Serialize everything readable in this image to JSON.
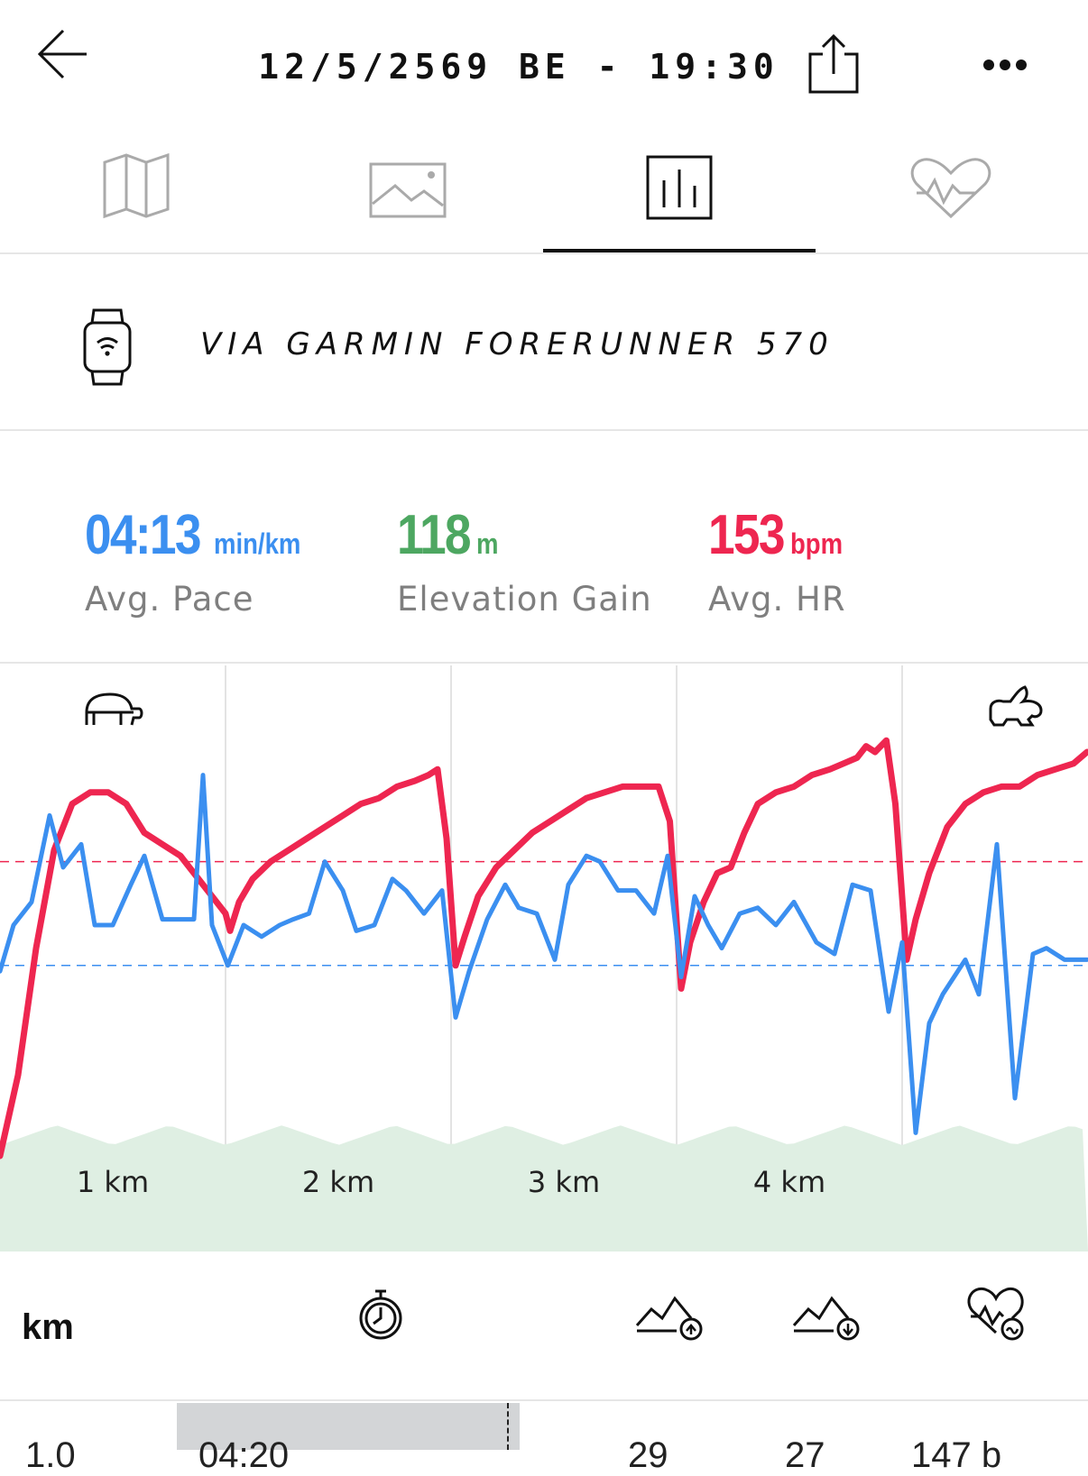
{
  "header": {
    "title": "12/5/2569 BE - 19:30",
    "back_icon": "arrow-left-icon",
    "share_icon": "share-icon",
    "more_icon": "more-dots-icon"
  },
  "tabs": [
    {
      "name": "map",
      "icon": "map-icon",
      "active": false
    },
    {
      "name": "photos",
      "icon": "image-icon",
      "active": false
    },
    {
      "name": "charts",
      "icon": "bar-chart-icon",
      "active": true
    },
    {
      "name": "heart-rate",
      "icon": "heart-rate-icon",
      "active": false
    }
  ],
  "device": {
    "text": "VIA GARMIN FORERUNNER 570",
    "icon": "smartwatch-icon"
  },
  "stats": {
    "pace": {
      "value": "04:13",
      "unit": "min/km",
      "label": "Avg. Pace",
      "color": "#3b8ff0"
    },
    "elevation": {
      "value": "118",
      "unit": "m",
      "label": "Elevation Gain",
      "color": "#4da761"
    },
    "hr": {
      "value": "153",
      "unit": "bpm",
      "label": "Avg. HR",
      "color": "#ee2650"
    }
  },
  "chart_data": {
    "type": "line",
    "x_labels": [
      "1 km",
      "2 km",
      "3 km",
      "4 km"
    ],
    "slow_icon": "turtle-icon",
    "fast_icon": "rabbit-icon",
    "grid": true,
    "series": [
      {
        "color": "#ee2650",
        "points": [
          [
            0,
            0.85
          ],
          [
            0.08,
            0.71
          ],
          [
            0.16,
            0.49
          ],
          [
            0.24,
            0.32
          ],
          [
            0.32,
            0.24
          ],
          [
            0.4,
            0.22
          ],
          [
            0.48,
            0.22
          ],
          [
            0.56,
            0.24
          ],
          [
            0.64,
            0.29
          ],
          [
            0.72,
            0.31
          ],
          [
            0.8,
            0.33
          ],
          [
            0.88,
            0.37
          ],
          [
            0.96,
            0.41
          ],
          [
            1.0,
            0.43
          ],
          [
            1.02,
            0.46
          ],
          [
            1.06,
            0.41
          ],
          [
            1.12,
            0.37
          ],
          [
            1.2,
            0.34
          ],
          [
            1.28,
            0.32
          ],
          [
            1.36,
            0.3
          ],
          [
            1.44,
            0.28
          ],
          [
            1.52,
            0.26
          ],
          [
            1.6,
            0.24
          ],
          [
            1.68,
            0.23
          ],
          [
            1.76,
            0.21
          ],
          [
            1.84,
            0.2
          ],
          [
            1.9,
            0.19
          ],
          [
            1.94,
            0.18
          ],
          [
            1.98,
            0.3
          ],
          [
            2.02,
            0.52
          ],
          [
            2.06,
            0.47
          ],
          [
            2.12,
            0.4
          ],
          [
            2.2,
            0.35
          ],
          [
            2.28,
            0.32
          ],
          [
            2.36,
            0.29
          ],
          [
            2.44,
            0.27
          ],
          [
            2.52,
            0.25
          ],
          [
            2.6,
            0.23
          ],
          [
            2.68,
            0.22
          ],
          [
            2.76,
            0.21
          ],
          [
            2.84,
            0.21
          ],
          [
            2.92,
            0.21
          ],
          [
            2.97,
            0.27
          ],
          [
            3.02,
            0.56
          ],
          [
            3.06,
            0.48
          ],
          [
            3.12,
            0.41
          ],
          [
            3.18,
            0.36
          ],
          [
            3.24,
            0.35
          ],
          [
            3.3,
            0.29
          ],
          [
            3.36,
            0.24
          ],
          [
            3.44,
            0.22
          ],
          [
            3.52,
            0.21
          ],
          [
            3.6,
            0.19
          ],
          [
            3.68,
            0.18
          ],
          [
            3.74,
            0.17
          ],
          [
            3.8,
            0.16
          ],
          [
            3.84,
            0.14
          ],
          [
            3.88,
            0.15
          ],
          [
            3.93,
            0.13
          ],
          [
            3.97,
            0.24
          ],
          [
            4.02,
            0.51
          ],
          [
            4.06,
            0.44
          ],
          [
            4.12,
            0.36
          ],
          [
            4.2,
            0.28
          ],
          [
            4.28,
            0.24
          ],
          [
            4.36,
            0.22
          ],
          [
            4.44,
            0.21
          ],
          [
            4.52,
            0.21
          ],
          [
            4.6,
            0.19
          ],
          [
            4.68,
            0.18
          ],
          [
            4.76,
            0.17
          ],
          [
            4.82,
            0.15
          ]
        ]
      },
      {
        "color": "#3b8ff0",
        "points": [
          [
            0,
            0.53
          ],
          [
            0.06,
            0.45
          ],
          [
            0.14,
            0.41
          ],
          [
            0.22,
            0.26
          ],
          [
            0.28,
            0.35
          ],
          [
            0.36,
            0.31
          ],
          [
            0.42,
            0.45
          ],
          [
            0.5,
            0.45
          ],
          [
            0.58,
            0.38
          ],
          [
            0.64,
            0.33
          ],
          [
            0.72,
            0.44
          ],
          [
            0.8,
            0.44
          ],
          [
            0.86,
            0.44
          ],
          [
            0.9,
            0.19
          ],
          [
            0.94,
            0.45
          ],
          [
            1.01,
            0.52
          ],
          [
            1.08,
            0.45
          ],
          [
            1.16,
            0.47
          ],
          [
            1.24,
            0.45
          ],
          [
            1.3,
            0.44
          ],
          [
            1.37,
            0.43
          ],
          [
            1.44,
            0.34
          ],
          [
            1.52,
            0.39
          ],
          [
            1.58,
            0.46
          ],
          [
            1.66,
            0.45
          ],
          [
            1.74,
            0.37
          ],
          [
            1.8,
            0.39
          ],
          [
            1.88,
            0.43
          ],
          [
            1.96,
            0.39
          ],
          [
            2.02,
            0.61
          ],
          [
            2.08,
            0.53
          ],
          [
            2.16,
            0.44
          ],
          [
            2.24,
            0.38
          ],
          [
            2.3,
            0.42
          ],
          [
            2.38,
            0.43
          ],
          [
            2.46,
            0.51
          ],
          [
            2.52,
            0.38
          ],
          [
            2.6,
            0.33
          ],
          [
            2.66,
            0.34
          ],
          [
            2.74,
            0.39
          ],
          [
            2.82,
            0.39
          ],
          [
            2.9,
            0.43
          ],
          [
            2.96,
            0.33
          ],
          [
            3.02,
            0.54
          ],
          [
            3.08,
            0.4
          ],
          [
            3.14,
            0.45
          ],
          [
            3.2,
            0.49
          ],
          [
            3.28,
            0.43
          ],
          [
            3.36,
            0.42
          ],
          [
            3.44,
            0.45
          ],
          [
            3.52,
            0.41
          ],
          [
            3.62,
            0.48
          ],
          [
            3.7,
            0.5
          ],
          [
            3.78,
            0.38
          ],
          [
            3.86,
            0.39
          ],
          [
            3.94,
            0.6
          ],
          [
            4.0,
            0.48
          ],
          [
            4.06,
            0.81
          ],
          [
            4.12,
            0.62
          ],
          [
            4.18,
            0.57
          ],
          [
            4.28,
            0.51
          ],
          [
            4.34,
            0.57
          ],
          [
            4.42,
            0.31
          ],
          [
            4.5,
            0.75
          ],
          [
            4.58,
            0.5
          ],
          [
            4.64,
            0.49
          ],
          [
            4.72,
            0.51
          ],
          [
            4.8,
            0.51
          ],
          [
            4.82,
            0.51
          ]
        ]
      }
    ],
    "ref_lines": [
      {
        "color": "#ee2650",
        "value": 0.34
      },
      {
        "color": "#3b8ff0",
        "value": 0.52
      }
    ],
    "elevation_color": "#dfefe3"
  },
  "metric_bar": {
    "km_label": "km",
    "icons": [
      "stopwatch-icon",
      "elevation-up-icon",
      "elevation-down-icon",
      "heart-rate-zones-icon"
    ]
  },
  "bottom_row": {
    "values": [
      "1.0",
      "04:20",
      "29",
      "27",
      "147 b"
    ]
  }
}
